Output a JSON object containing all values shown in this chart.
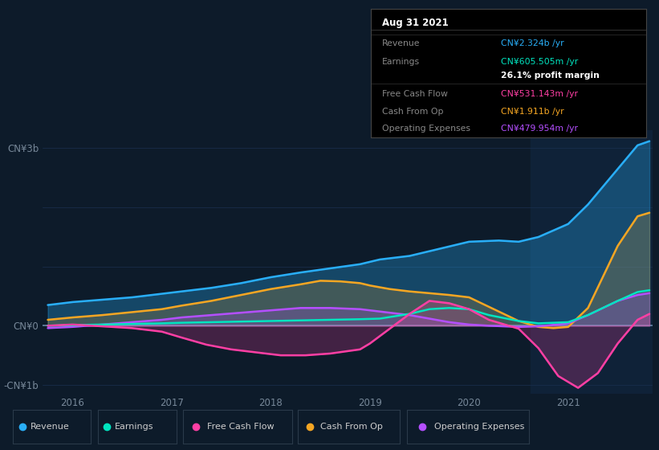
{
  "background_color": "#0d1b2a",
  "plot_bg_color": "#0d1b2a",
  "ylim": [
    -1150000000.0,
    3300000000.0
  ],
  "xlim": [
    2015.7,
    2021.85
  ],
  "xtick_labels": [
    "2016",
    "2017",
    "2018",
    "2019",
    "2020",
    "2021"
  ],
  "xtick_positions": [
    2016,
    2017,
    2018,
    2019,
    2020,
    2021
  ],
  "series": {
    "Revenue": {
      "color": "#29aef7",
      "fill": true,
      "fill_alpha": 0.3,
      "x": [
        2015.75,
        2016.0,
        2016.3,
        2016.6,
        2016.9,
        2017.1,
        2017.4,
        2017.7,
        2018.0,
        2018.3,
        2018.6,
        2018.9,
        2019.1,
        2019.4,
        2019.5,
        2019.7,
        2020.0,
        2020.3,
        2020.5,
        2020.7,
        2021.0,
        2021.2,
        2021.5,
        2021.7,
        2021.82
      ],
      "y": [
        350000000.0,
        400000000.0,
        440000000.0,
        480000000.0,
        540000000.0,
        580000000.0,
        640000000.0,
        720000000.0,
        820000000.0,
        900000000.0,
        970000000.0,
        1040000000.0,
        1120000000.0,
        1180000000.0,
        1220000000.0,
        1300000000.0,
        1420000000.0,
        1440000000.0,
        1420000000.0,
        1500000000.0,
        1720000000.0,
        2050000000.0,
        2650000000.0,
        3050000000.0,
        3120000000.0
      ]
    },
    "Earnings": {
      "color": "#00e5c0",
      "fill": false,
      "x": [
        2015.75,
        2016.0,
        2016.3,
        2016.6,
        2016.9,
        2017.1,
        2017.4,
        2017.7,
        2018.0,
        2018.3,
        2018.6,
        2018.9,
        2019.1,
        2019.4,
        2019.6,
        2019.8,
        2020.0,
        2020.2,
        2020.5,
        2020.7,
        2021.0,
        2021.2,
        2021.5,
        2021.7,
        2021.82
      ],
      "y": [
        0.0,
        10000000.0,
        20000000.0,
        30000000.0,
        40000000.0,
        50000000.0,
        60000000.0,
        70000000.0,
        80000000.0,
        90000000.0,
        100000000.0,
        110000000.0,
        120000000.0,
        200000000.0,
        280000000.0,
        300000000.0,
        280000000.0,
        180000000.0,
        80000000.0,
        40000000.0,
        60000000.0,
        180000000.0,
        420000000.0,
        570000000.0,
        600000000.0
      ]
    },
    "Free Cash Flow": {
      "color": "#ff3fa4",
      "fill": true,
      "fill_alpha": 0.22,
      "x": [
        2015.75,
        2016.0,
        2016.3,
        2016.6,
        2016.9,
        2017.1,
        2017.35,
        2017.6,
        2017.9,
        2018.1,
        2018.35,
        2018.6,
        2018.9,
        2019.0,
        2019.2,
        2019.4,
        2019.6,
        2019.8,
        2020.0,
        2020.2,
        2020.5,
        2020.7,
        2020.9,
        2021.1,
        2021.3,
        2021.5,
        2021.7,
        2021.82
      ],
      "y": [
        0.0,
        20000000.0,
        -10000000.0,
        -40000000.0,
        -100000000.0,
        -200000000.0,
        -320000000.0,
        -400000000.0,
        -460000000.0,
        -500000000.0,
        -500000000.0,
        -470000000.0,
        -400000000.0,
        -300000000.0,
        -50000000.0,
        200000000.0,
        420000000.0,
        380000000.0,
        280000000.0,
        100000000.0,
        -50000000.0,
        -380000000.0,
        -850000000.0,
        -1050000000.0,
        -800000000.0,
        -300000000.0,
        100000000.0,
        200000000.0
      ]
    },
    "Cash From Op": {
      "color": "#f5a623",
      "fill": true,
      "fill_alpha": 0.2,
      "x": [
        2015.75,
        2016.0,
        2016.3,
        2016.6,
        2016.9,
        2017.1,
        2017.4,
        2017.7,
        2018.0,
        2018.3,
        2018.5,
        2018.7,
        2018.9,
        2019.0,
        2019.2,
        2019.4,
        2019.6,
        2019.8,
        2020.0,
        2020.2,
        2020.5,
        2020.7,
        2020.85,
        2021.0,
        2021.2,
        2021.5,
        2021.7,
        2021.82
      ],
      "y": [
        100000000.0,
        140000000.0,
        180000000.0,
        230000000.0,
        280000000.0,
        340000000.0,
        420000000.0,
        520000000.0,
        620000000.0,
        700000000.0,
        760000000.0,
        750000000.0,
        720000000.0,
        680000000.0,
        620000000.0,
        580000000.0,
        550000000.0,
        520000000.0,
        480000000.0,
        320000000.0,
        80000000.0,
        -20000000.0,
        -40000000.0,
        -20000000.0,
        300000000.0,
        1350000000.0,
        1850000000.0,
        1910000000.0
      ]
    },
    "Operating Expenses": {
      "color": "#b44fff",
      "fill": true,
      "fill_alpha": 0.22,
      "x": [
        2015.75,
        2016.0,
        2016.3,
        2016.6,
        2016.9,
        2017.1,
        2017.4,
        2017.7,
        2018.0,
        2018.3,
        2018.6,
        2018.9,
        2019.1,
        2019.4,
        2019.6,
        2019.8,
        2020.0,
        2020.2,
        2020.5,
        2020.7,
        2021.0,
        2021.2,
        2021.5,
        2021.7,
        2021.82
      ],
      "y": [
        -40000000.0,
        -20000000.0,
        20000000.0,
        60000000.0,
        100000000.0,
        140000000.0,
        180000000.0,
        220000000.0,
        260000000.0,
        300000000.0,
        300000000.0,
        280000000.0,
        240000000.0,
        180000000.0,
        120000000.0,
        60000000.0,
        20000000.0,
        0.0,
        -20000000.0,
        -10000000.0,
        40000000.0,
        180000000.0,
        420000000.0,
        520000000.0,
        550000000.0
      ]
    }
  },
  "tooltip": {
    "title": "Aug 31 2021",
    "rows": [
      {
        "label": "Revenue",
        "label_color": "#888888",
        "value": "CN¥2.324b /yr",
        "value_color": "#29aef7",
        "bold_value": false
      },
      {
        "label": "Earnings",
        "label_color": "#888888",
        "value": "CN¥605.505m /yr",
        "value_color": "#00e5c0",
        "bold_value": false
      },
      {
        "label": "",
        "label_color": "#888888",
        "value": "26.1% profit margin",
        "value_color": "#ffffff",
        "bold_value": true
      },
      {
        "label": "Free Cash Flow",
        "label_color": "#888888",
        "value": "CN¥531.143m /yr",
        "value_color": "#ff3fa4",
        "bold_value": false
      },
      {
        "label": "Cash From Op",
        "label_color": "#888888",
        "value": "CN¥1.911b /yr",
        "value_color": "#f5a623",
        "bold_value": false
      },
      {
        "label": "Operating Expenses",
        "label_color": "#888888",
        "value": "CN¥479.954m /yr",
        "value_color": "#b44fff",
        "bold_value": false
      }
    ]
  },
  "legend": [
    {
      "label": "Revenue",
      "color": "#29aef7"
    },
    {
      "label": "Earnings",
      "color": "#00e5c0"
    },
    {
      "label": "Free Cash Flow",
      "color": "#ff3fa4"
    },
    {
      "label": "Cash From Op",
      "color": "#f5a623"
    },
    {
      "label": "Operating Expenses",
      "color": "#b44fff"
    }
  ],
  "grid_color": "#1a3050",
  "zero_line_color": "#6688aa",
  "tick_color": "#778899",
  "highlight_color": "#0f2238",
  "highlight_start": 2020.62
}
